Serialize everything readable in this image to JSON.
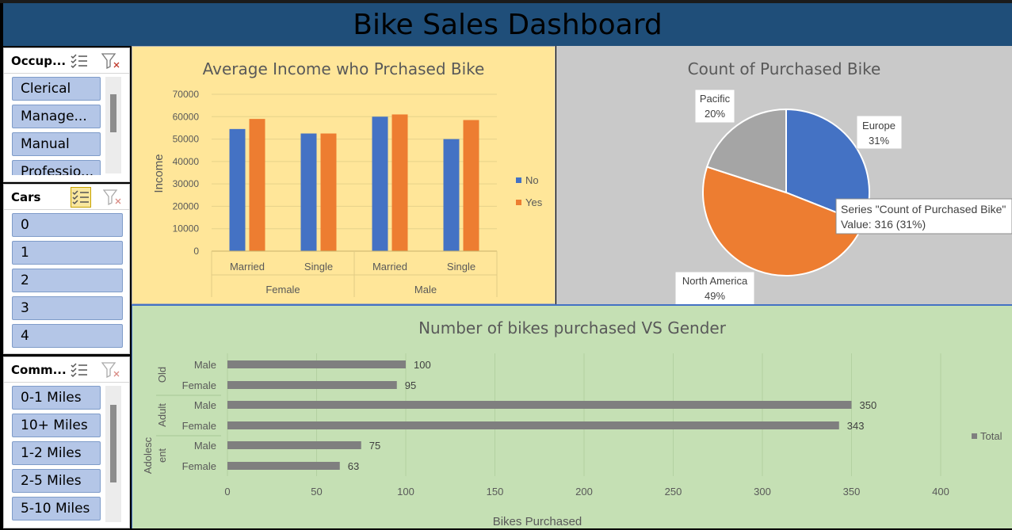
{
  "dashboard": {
    "title": "Bike Sales Dashboard"
  },
  "slicers": {
    "occupation": {
      "title": "Occup...",
      "items": [
        "Clerical",
        "Manage...",
        "Manual",
        "Professio..."
      ]
    },
    "cars": {
      "title": "Cars",
      "items": [
        "0",
        "1",
        "2",
        "3",
        "4"
      ]
    },
    "commute": {
      "title": "Comm...",
      "items": [
        "0-1 Miles",
        "10+ Miles",
        "1-2 Miles",
        "2-5 Miles",
        "5-10 Miles"
      ]
    }
  },
  "colors": {
    "no": "#4472c4",
    "yes": "#ed7d31",
    "pacific": "#a5a5a5",
    "europe": "#4472c4",
    "north_america": "#ed7d31",
    "bar_total": "#7f7f7f",
    "panel_income": "#ffe699",
    "panel_pie": "#c9c9c9",
    "panel_gender": "#c5e0b4"
  },
  "tooltip": {
    "line1": "Series \"Count of Purchased Bike\"",
    "line2": "Value: 316 (31%)"
  },
  "chart_data": [
    {
      "type": "bar",
      "title": "Average Income who Prchased Bike",
      "ylabel": "Income",
      "xlabel": "",
      "ylim": [
        0,
        70000
      ],
      "yticks": [
        "0",
        "10000",
        "20000",
        "30000",
        "40000",
        "50000",
        "60000",
        "70000"
      ],
      "categories": [
        "Married",
        "Single",
        "Married",
        "Single"
      ],
      "groups": [
        "Female",
        "Male"
      ],
      "series": [
        {
          "name": "No",
          "values": [
            54500,
            52500,
            60000,
            50000
          ]
        },
        {
          "name": "Yes",
          "values": [
            59000,
            52500,
            61000,
            58500
          ]
        }
      ],
      "legend": "right"
    },
    {
      "type": "pie",
      "title": "Count of Purchased Bike",
      "slices": [
        {
          "label": "Europe",
          "pct": 31,
          "pct_label": "31%"
        },
        {
          "label": "North America",
          "pct": 49,
          "pct_label": "49%"
        },
        {
          "label": "Pacific",
          "pct": 20,
          "pct_label": "20%"
        }
      ]
    },
    {
      "type": "bar",
      "orientation": "horizontal",
      "title": "Number of bikes purchased VS Gender",
      "xlabel": "Bikes Purchased",
      "xlim": [
        0,
        400
      ],
      "xticks": [
        "0",
        "50",
        "100",
        "150",
        "200",
        "250",
        "300",
        "350",
        "400"
      ],
      "groups": [
        "Old",
        "Adult",
        "Adolesc ent"
      ],
      "categories": [
        "Male",
        "Female",
        "Male",
        "Female",
        "Male",
        "Female"
      ],
      "series": [
        {
          "name": "Total",
          "values": [
            100,
            95,
            350,
            343,
            75,
            63
          ]
        }
      ],
      "legend": "right"
    }
  ]
}
